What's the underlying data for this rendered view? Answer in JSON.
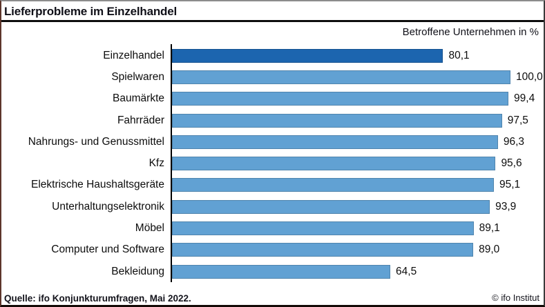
{
  "header": {
    "title": "Lieferprobleme im Einzelhandel",
    "subtitle": "Betroffene Unternehmen in %"
  },
  "footer": {
    "source": "Quelle: ifo Konjunkturumfragen, Mai 2022.",
    "copyright": "© ifo Institut"
  },
  "colors": {
    "highlight_bar": "#1c65af",
    "default_bar": "#61a1d3",
    "axis_line": "#000000",
    "title_rule": "#0d0d0d"
  },
  "chart_data": {
    "type": "bar",
    "orientation": "horizontal",
    "title": "Lieferprobleme im Einzelhandel",
    "subtitle": "Betroffene Unternehmen in %",
    "xlabel": "Betroffene Unternehmen in %",
    "ylabel": "",
    "xlim": [
      0,
      100
    ],
    "grid": false,
    "legend": "none",
    "highlight_index": 0,
    "categories": [
      "Einzelhandel",
      "Spielwaren",
      "Baumärkte",
      "Fahrräder",
      "Nahrungs- und Genussmittel",
      "Kfz",
      "Elektrische Haushaltsgeräte",
      "Unterhaltungselektronik",
      "Möbel",
      "Computer und Software",
      "Bekleidung"
    ],
    "values": [
      80.1,
      100.0,
      99.4,
      97.5,
      96.3,
      95.6,
      95.1,
      93.9,
      89.1,
      89.0,
      64.5
    ],
    "value_labels": [
      "80,1",
      "100,0",
      "99,4",
      "97,5",
      "96,3",
      "95,6",
      "95,1",
      "93,9",
      "89,1",
      "89,0",
      "64,5"
    ]
  }
}
